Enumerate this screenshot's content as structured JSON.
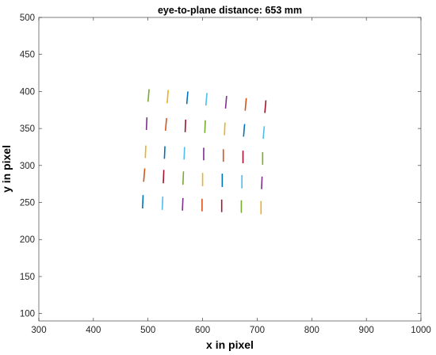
{
  "chart_data": {
    "type": "scatter",
    "title": "eye-to-plane distance: 653 mm",
    "xlabel": "x in pixel",
    "ylabel": "y in pixel",
    "xlim": [
      300,
      1000
    ],
    "ylim": [
      90,
      500
    ],
    "xticks": [
      "300",
      "400",
      "500",
      "600",
      "700",
      "800",
      "900",
      "1000"
    ],
    "yticks": [
      "100",
      "150",
      "200",
      "250",
      "300",
      "350",
      "400",
      "450",
      "500"
    ],
    "grid": false,
    "colors": [
      "#0072BD",
      "#D95319",
      "#EDB120",
      "#7E2F8E",
      "#77AC30",
      "#4DBEEE",
      "#A2142F"
    ],
    "segments": [
      {
        "x1": 500,
        "y1": 386,
        "x2": 502,
        "y2": 403,
        "color": "#77AC30"
      },
      {
        "x1": 535,
        "y1": 384,
        "x2": 537,
        "y2": 402,
        "color": "#EDB120"
      },
      {
        "x1": 571,
        "y1": 383,
        "x2": 573,
        "y2": 400,
        "color": "#0072BD"
      },
      {
        "x1": 606,
        "y1": 381,
        "x2": 608,
        "y2": 398,
        "color": "#4DBEEE"
      },
      {
        "x1": 642,
        "y1": 377,
        "x2": 644,
        "y2": 394,
        "color": "#7E2F8E"
      },
      {
        "x1": 678,
        "y1": 374,
        "x2": 680,
        "y2": 391,
        "color": "#D95319"
      },
      {
        "x1": 714,
        "y1": 371,
        "x2": 716,
        "y2": 388,
        "color": "#A2142F"
      },
      {
        "x1": 497,
        "y1": 348,
        "x2": 498,
        "y2": 365,
        "color": "#7E2F8E"
      },
      {
        "x1": 532,
        "y1": 347,
        "x2": 534,
        "y2": 364,
        "color": "#D95319"
      },
      {
        "x1": 568,
        "y1": 345,
        "x2": 569,
        "y2": 362,
        "color": "#A2142F"
      },
      {
        "x1": 604,
        "y1": 344,
        "x2": 605,
        "y2": 361,
        "color": "#77AC30"
      },
      {
        "x1": 640,
        "y1": 341,
        "x2": 641,
        "y2": 358,
        "color": "#EDB120"
      },
      {
        "x1": 675,
        "y1": 339,
        "x2": 677,
        "y2": 356,
        "color": "#0072BD"
      },
      {
        "x1": 711,
        "y1": 336,
        "x2": 713,
        "y2": 353,
        "color": "#4DBEEE"
      },
      {
        "x1": 495,
        "y1": 310,
        "x2": 496,
        "y2": 327,
        "color": "#EDB120"
      },
      {
        "x1": 530,
        "y1": 309,
        "x2": 531,
        "y2": 326,
        "color": "#0072BD"
      },
      {
        "x1": 566,
        "y1": 308,
        "x2": 567,
        "y2": 325,
        "color": "#4DBEEE"
      },
      {
        "x1": 602,
        "y1": 307,
        "x2": 602,
        "y2": 324,
        "color": "#7E2F8E"
      },
      {
        "x1": 638,
        "y1": 305,
        "x2": 638,
        "y2": 322,
        "color": "#D95319"
      },
      {
        "x1": 674,
        "y1": 303,
        "x2": 674,
        "y2": 320,
        "color": "#A2142F"
      },
      {
        "x1": 710,
        "y1": 301,
        "x2": 710,
        "y2": 318,
        "color": "#77AC30"
      },
      {
        "x1": 492,
        "y1": 278,
        "x2": 494,
        "y2": 296,
        "color": "#D95319"
      },
      {
        "x1": 528,
        "y1": 276,
        "x2": 529,
        "y2": 294,
        "color": "#A2142F"
      },
      {
        "x1": 564,
        "y1": 274,
        "x2": 565,
        "y2": 292,
        "color": "#77AC30"
      },
      {
        "x1": 600,
        "y1": 272,
        "x2": 600,
        "y2": 290,
        "color": "#EDB120"
      },
      {
        "x1": 636,
        "y1": 271,
        "x2": 636,
        "y2": 289,
        "color": "#0072BD"
      },
      {
        "x1": 672,
        "y1": 269,
        "x2": 672,
        "y2": 287,
        "color": "#4DBEEE"
      },
      {
        "x1": 708,
        "y1": 268,
        "x2": 709,
        "y2": 285,
        "color": "#7E2F8E"
      },
      {
        "x1": 490,
        "y1": 242,
        "x2": 491,
        "y2": 260,
        "color": "#0072BD"
      },
      {
        "x1": 526,
        "y1": 240,
        "x2": 527,
        "y2": 258,
        "color": "#4DBEEE"
      },
      {
        "x1": 563,
        "y1": 239,
        "x2": 564,
        "y2": 256,
        "color": "#7E2F8E"
      },
      {
        "x1": 599,
        "y1": 238,
        "x2": 599,
        "y2": 255,
        "color": "#D95319"
      },
      {
        "x1": 635,
        "y1": 237,
        "x2": 635,
        "y2": 254,
        "color": "#A2142F"
      },
      {
        "x1": 671,
        "y1": 236,
        "x2": 671,
        "y2": 253,
        "color": "#77AC30"
      },
      {
        "x1": 707,
        "y1": 234,
        "x2": 707,
        "y2": 252,
        "color": "#EDB120"
      }
    ]
  }
}
